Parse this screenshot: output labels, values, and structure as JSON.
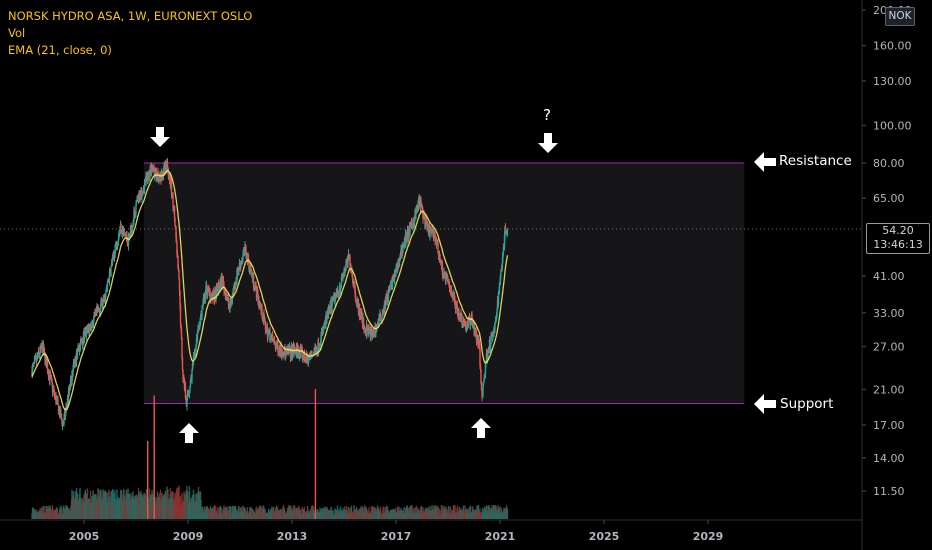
{
  "legend": {
    "symbol_line": "NORSK HYDRO ASA, 1W, EURONEXT OSLO",
    "volume_line": "Vol",
    "ema_line": "EMA (21, close, 0)"
  },
  "price_axis": {
    "currency": "NOK",
    "last_price": "54.20",
    "countdown": "13:46:13",
    "colors": {
      "axis_text": "#b2b5be",
      "axis_line": "#2a2e39"
    }
  },
  "annotations": {
    "resistance_label": "Resistance",
    "support_label": "Support",
    "question_mark": "?"
  },
  "colors": {
    "background": "#000000",
    "up_candle": "#26a69a",
    "down_candle": "#ef5350",
    "ema_line": "#f5e663",
    "range_border": "#9c27b0",
    "range_fill": "#161618",
    "arrow": "#ffffff"
  },
  "chart_data": {
    "type": "line",
    "title": "NORSK HYDRO ASA, 1W, EURONEXT OSLO",
    "x_ticks": [
      "2005",
      "2009",
      "2013",
      "2017",
      "2021",
      "2025",
      "2029"
    ],
    "y_ticks": [
      "11.50",
      "14.00",
      "17.00",
      "21.00",
      "27.00",
      "33.00",
      "41.00",
      "54.20",
      "65.00",
      "80.00",
      "100.00",
      "130.00",
      "160.00",
      "200.00"
    ],
    "y_scale": "log",
    "xlim": [
      2002.9,
      2031.5
    ],
    "ylim": [
      11.5,
      200
    ],
    "series": [
      {
        "name": "NORSK HYDRO ASA",
        "x": [
          2003.0,
          2003.4,
          2003.8,
          2004.2,
          2004.6,
          2004.9,
          2005.2,
          2005.5,
          2005.8,
          2006.1,
          2006.4,
          2006.7,
          2007.0,
          2007.3,
          2007.6,
          2007.9,
          2008.2,
          2008.45,
          2008.65,
          2008.8,
          2008.95,
          2009.1,
          2009.4,
          2009.7,
          2010.0,
          2010.3,
          2010.6,
          2010.9,
          2011.2,
          2011.6,
          2012.0,
          2012.4,
          2012.8,
          2013.2,
          2013.6,
          2014.0,
          2014.4,
          2014.8,
          2015.2,
          2015.5,
          2015.8,
          2016.1,
          2016.4,
          2016.7,
          2017.0,
          2017.3,
          2017.6,
          2017.9,
          2018.2,
          2018.5,
          2018.8,
          2019.1,
          2019.4,
          2019.7,
          2019.9,
          2020.2,
          2020.3,
          2020.5,
          2020.8,
          2021.0,
          2021.2,
          2021.3
        ],
        "y": [
          23.5,
          27.0,
          21.0,
          17.0,
          24.0,
          28.0,
          30.0,
          33.0,
          36.0,
          45.0,
          55.0,
          50.0,
          62.0,
          70.0,
          78.0,
          72.0,
          80.0,
          62.0,
          40.0,
          23.0,
          19.5,
          22.0,
          30.0,
          38.0,
          36.0,
          40.0,
          34.0,
          42.0,
          48.0,
          38.0,
          30.0,
          27.0,
          26.0,
          26.5,
          25.0,
          27.0,
          33.0,
          38.0,
          46.0,
          35.0,
          30.0,
          29.0,
          32.0,
          37.0,
          42.0,
          50.0,
          55.0,
          64.0,
          54.0,
          52.0,
          42.0,
          38.0,
          33.0,
          30.5,
          32.0,
          27.0,
          20.0,
          26.0,
          30.0,
          40.0,
          54.0,
          54.2
        ]
      }
    ],
    "volume": {
      "spikes": [
        {
          "x": 2007.7,
          "level": 0.95
        },
        {
          "x": 2007.45,
          "level": 0.6
        },
        {
          "x": 2013.9,
          "level": 1.0
        }
      ]
    },
    "range": {
      "resistance": 80.0,
      "support": 19.3,
      "x_start": 2007.3,
      "x_end": 2030.4
    },
    "last_price": 54.2
  }
}
